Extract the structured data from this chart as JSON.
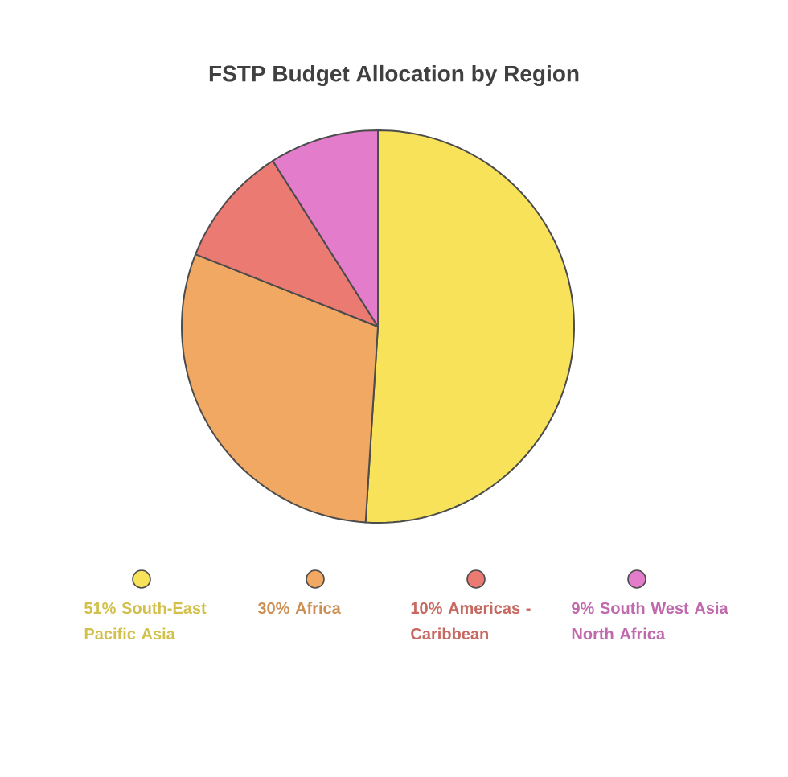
{
  "chart_data": {
    "type": "pie",
    "title": "FSTP Budget Allocation by Region",
    "categories": [
      "51% South-East Pacific Asia",
      "30% Africa",
      "10% Americas - Caribbean",
      "9% South West Asia North Africa"
    ],
    "values": [
      51,
      30,
      10,
      9
    ],
    "colors": [
      "#f7e25a",
      "#f0a862",
      "#ea7a72",
      "#e27ccb"
    ],
    "legend": "bottom"
  }
}
